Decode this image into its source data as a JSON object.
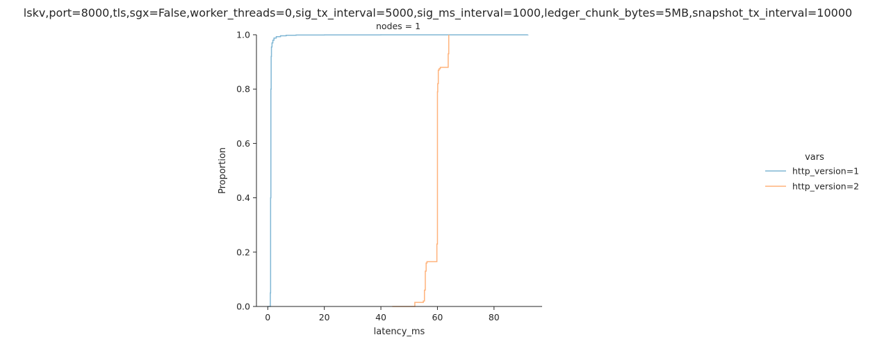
{
  "figure": {
    "title": "lskv,port=8000,tls,sgx=False,worker_threads=0,sig_tx_interval=5000,sig_ms_interval=1000,ledger_chunk_bytes=5MB,snapshot_tx_interval=10000",
    "facet_title": "nodes = 1"
  },
  "chart_data": {
    "type": "line",
    "subtype": "ecdf-step",
    "xlabel": "latency_ms",
    "ylabel": "Proportion",
    "xlim": [
      -4,
      97
    ],
    "ylim": [
      0,
      1
    ],
    "xticks": [
      0,
      20,
      40,
      60,
      80
    ],
    "yticks": [
      0.0,
      0.2,
      0.4,
      0.6,
      0.8,
      1.0
    ],
    "xtick_labels": [
      "0",
      "20",
      "40",
      "60",
      "80"
    ],
    "ytick_labels": [
      "0.0",
      "0.2",
      "0.4",
      "0.6",
      "0.8",
      "1.0"
    ],
    "grid": false,
    "legend": {
      "title": "vars",
      "placement": "right"
    },
    "series": [
      {
        "name": "http_version=1",
        "color": "#7fb6d4",
        "x": [
          0.0,
          0.8,
          0.9,
          1.0,
          1.1,
          1.2,
          1.3,
          1.5,
          1.8,
          2.2,
          3.0,
          4.5,
          6.5,
          10.0,
          20.0,
          40.0,
          92.0
        ],
        "y": [
          0.0,
          0.0,
          0.05,
          0.4,
          0.8,
          0.92,
          0.955,
          0.97,
          0.98,
          0.988,
          0.993,
          0.996,
          0.998,
          0.999,
          0.9995,
          0.9998,
          1.0
        ]
      },
      {
        "name": "http_version=2",
        "color": "#ffb27a",
        "x": [
          44.0,
          51.5,
          52.0,
          55.0,
          55.4,
          55.7,
          56.0,
          56.3,
          58.2,
          59.8,
          60.0,
          60.1,
          60.3,
          60.6,
          61.0,
          63.5,
          63.8,
          64.0
        ],
        "y": [
          0.0,
          0.0,
          0.015,
          0.02,
          0.06,
          0.13,
          0.16,
          0.165,
          0.165,
          0.23,
          0.79,
          0.82,
          0.87,
          0.875,
          0.88,
          0.88,
          0.93,
          1.0
        ]
      }
    ]
  }
}
